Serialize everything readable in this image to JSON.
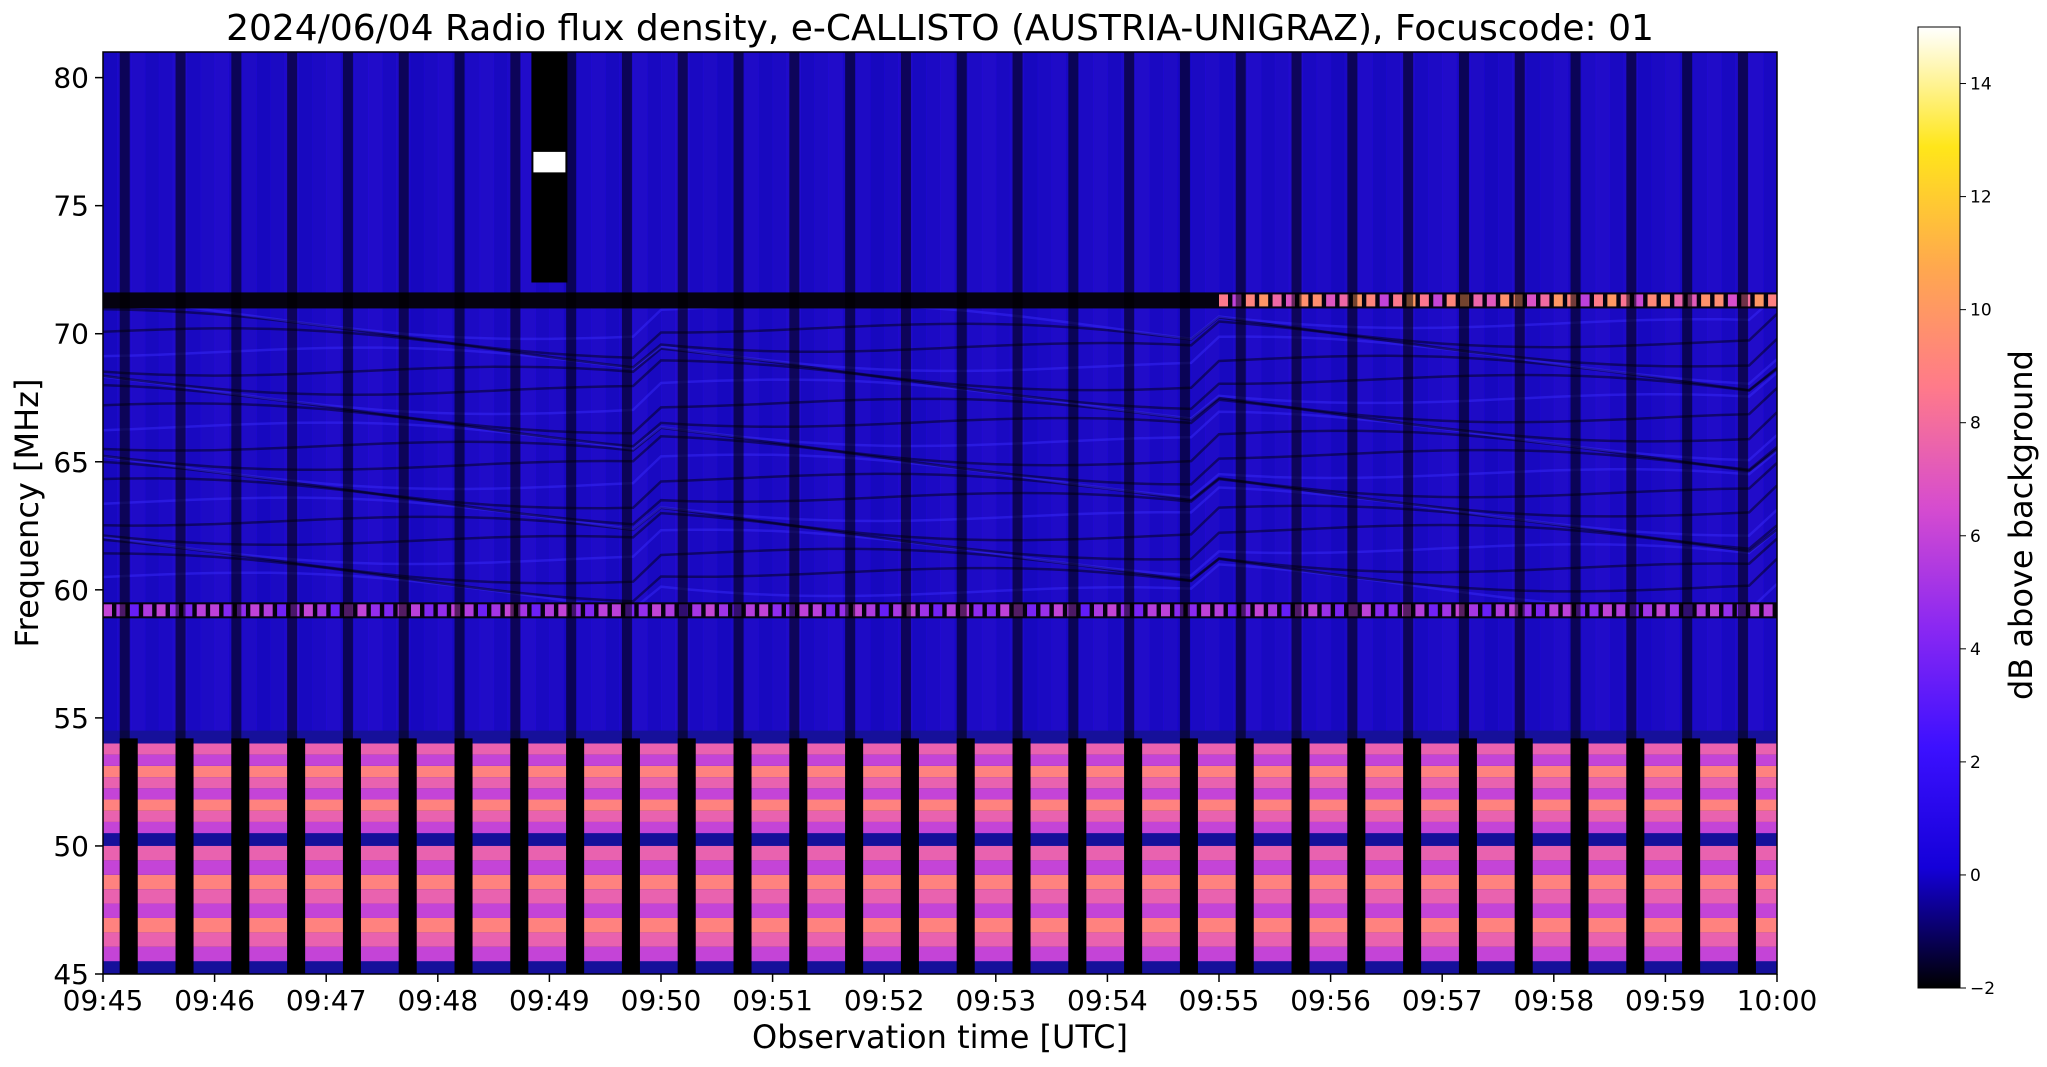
{
  "chart_data": {
    "type": "heatmap",
    "title": "2024/06/04  Radio flux density, e-CALLISTO (AUSTRIA-UNIGRAZ), Focuscode: 01",
    "xlabel": "Observation time [UTC]",
    "ylabel": "Frequency [MHz]",
    "colorbar_label": "dB above background",
    "x_ticks": [
      "09:45",
      "09:46",
      "09:47",
      "09:48",
      "09:49",
      "09:50",
      "09:51",
      "09:52",
      "09:53",
      "09:54",
      "09:55",
      "09:56",
      "09:57",
      "09:58",
      "09:59",
      "10:00"
    ],
    "xlim": [
      "09:45",
      "10:00"
    ],
    "y_ticks": [
      45,
      50,
      55,
      60,
      65,
      70,
      75,
      80
    ],
    "ylim": [
      45,
      81
    ],
    "colorbar_ticks": [
      -2,
      0,
      2,
      4,
      6,
      8,
      10,
      12,
      14
    ],
    "clim": [
      -2,
      15
    ],
    "colormap": "gnuplot2",
    "colormap_stops": [
      "#000000",
      "#1400d9",
      "#3c10ff",
      "#8a28f2",
      "#d64ccf",
      "#ff7a8a",
      "#ffa84e",
      "#ffe61a",
      "#ffffff"
    ],
    "features": [
      {
        "label": "strong emission band",
        "freq_range_mhz": [
          50.5,
          54.0
        ],
        "level_db": 8
      },
      {
        "label": "strong emission band",
        "freq_range_mhz": [
          45.5,
          50.0
        ],
        "level_db": 8
      },
      {
        "label": "intermittent interference",
        "freq_mhz": 59.2,
        "level_db": 6
      },
      {
        "label": "intermittent interference",
        "freq_mhz": 71.3,
        "time_range": [
          "09:55",
          "10:00"
        ],
        "level_db": 10
      },
      {
        "label": "narrow spike",
        "freq_mhz": 76.7,
        "time": "09:49",
        "level_db": 15
      }
    ]
  }
}
